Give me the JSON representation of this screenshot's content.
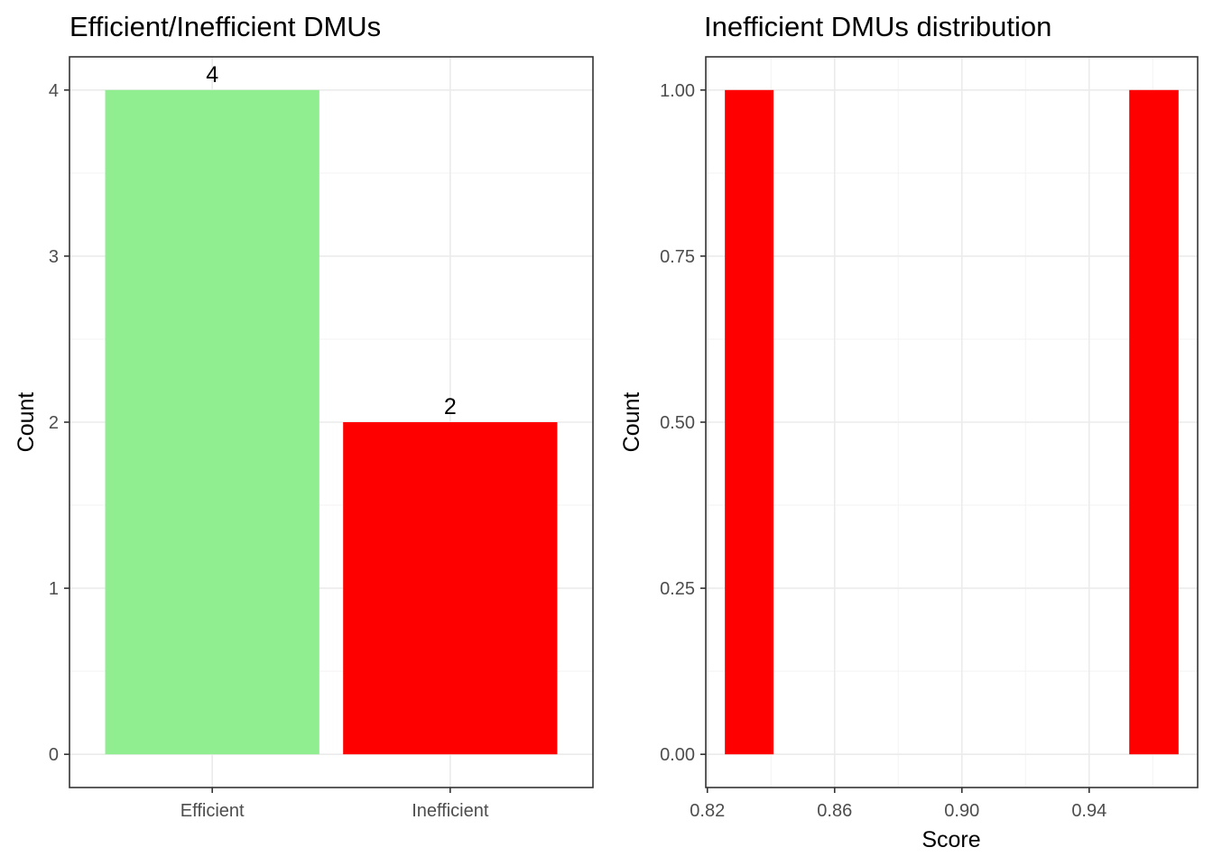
{
  "chart_data": [
    {
      "type": "bar",
      "title": "Efficient/Inefficient DMUs",
      "xlabel": "",
      "ylabel": "Count",
      "categories": [
        "Efficient",
        "Inefficient"
      ],
      "values": [
        4,
        2
      ],
      "data_labels": [
        "4",
        "2"
      ],
      "colors": [
        "#90ee90",
        "#ff0000"
      ],
      "ylim": [
        -0.2,
        4.2
      ],
      "yticks": [
        0,
        1,
        2,
        3,
        4
      ],
      "ytick_labels": [
        "0",
        "1",
        "2",
        "3",
        "4"
      ],
      "grid": true
    },
    {
      "type": "bar",
      "title": "Inefficient DMUs distribution",
      "xlabel": "Score",
      "ylabel": "Count",
      "bins": [
        {
          "x_start": 0.8255,
          "x_end": 0.8408,
          "count": 1
        },
        {
          "x_start": 0.9526,
          "x_end": 0.9681,
          "count": 1
        }
      ],
      "bar_color": "#ff0000",
      "xlim": [
        0.8195,
        0.9741
      ],
      "ylim": [
        -0.05,
        1.05
      ],
      "xticks": [
        0.82,
        0.86,
        0.9,
        0.94
      ],
      "xtick_labels": [
        "0.82",
        "0.86",
        "0.90",
        "0.94"
      ],
      "yticks": [
        0,
        0.25,
        0.5,
        0.75,
        1
      ],
      "ytick_labels": [
        "0.00",
        "0.25",
        "0.50",
        "0.75",
        "1.00"
      ],
      "grid": true
    }
  ]
}
